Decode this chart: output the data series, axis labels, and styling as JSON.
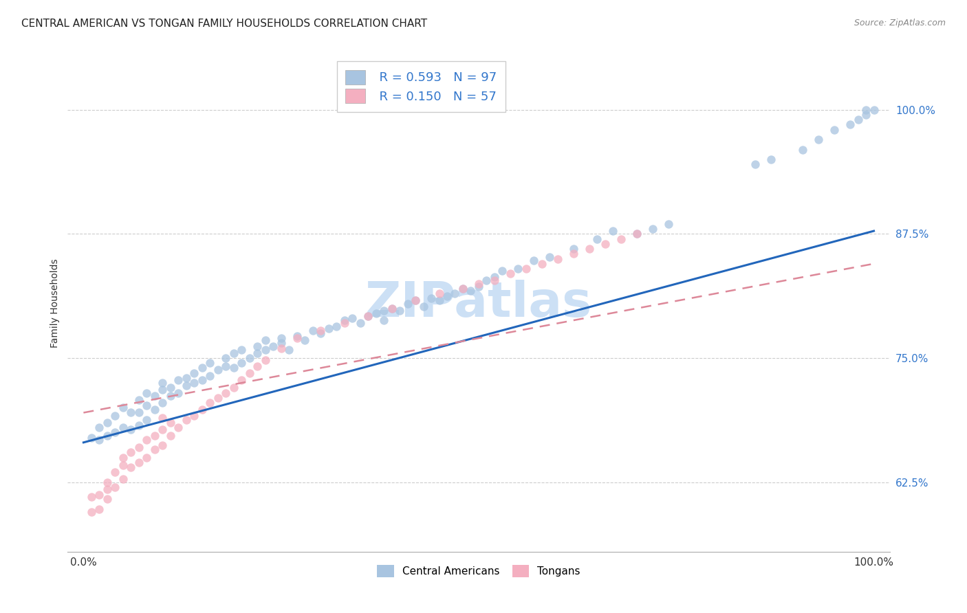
{
  "title": "CENTRAL AMERICAN VS TONGAN FAMILY HOUSEHOLDS CORRELATION CHART",
  "source": "Source: ZipAtlas.com",
  "ylabel": "Family Households",
  "xlim": [
    -0.02,
    1.02
  ],
  "ylim": [
    0.555,
    1.055
  ],
  "ytick_vals": [
    0.625,
    0.75,
    0.875,
    1.0
  ],
  "ytick_labels": [
    "62.5%",
    "75.0%",
    "87.5%",
    "100.0%"
  ],
  "xtick_vals": [
    0.0,
    0.25,
    0.5,
    0.75,
    1.0
  ],
  "xtick_labels": [
    "0.0%",
    "",
    "",
    "",
    "100.0%"
  ],
  "legend_r1": "R = 0.593",
  "legend_n1": "N = 97",
  "legend_r2": "R = 0.150",
  "legend_n2": "N = 57",
  "blue_scatter_color": "#a8c4e0",
  "pink_scatter_color": "#f4afc0",
  "blue_line_color": "#2266bb",
  "pink_line_color": "#dd8899",
  "tick_label_color": "#3377cc",
  "watermark_color": "#cce0f5",
  "blue_line_x": [
    0.0,
    1.0
  ],
  "blue_line_y": [
    0.665,
    0.878
  ],
  "pink_line_x": [
    0.0,
    1.0
  ],
  "pink_line_y": [
    0.695,
    0.845
  ],
  "blue_x": [
    0.01,
    0.02,
    0.02,
    0.03,
    0.03,
    0.04,
    0.04,
    0.05,
    0.05,
    0.06,
    0.06,
    0.07,
    0.07,
    0.07,
    0.08,
    0.08,
    0.08,
    0.09,
    0.09,
    0.1,
    0.1,
    0.1,
    0.11,
    0.11,
    0.12,
    0.12,
    0.13,
    0.13,
    0.14,
    0.14,
    0.15,
    0.15,
    0.16,
    0.16,
    0.17,
    0.18,
    0.18,
    0.19,
    0.19,
    0.2,
    0.2,
    0.21,
    0.22,
    0.22,
    0.23,
    0.23,
    0.24,
    0.25,
    0.25,
    0.26,
    0.27,
    0.28,
    0.29,
    0.3,
    0.31,
    0.32,
    0.33,
    0.34,
    0.35,
    0.36,
    0.37,
    0.38,
    0.38,
    0.39,
    0.4,
    0.41,
    0.42,
    0.43,
    0.44,
    0.45,
    0.46,
    0.47,
    0.48,
    0.49,
    0.5,
    0.51,
    0.52,
    0.53,
    0.55,
    0.57,
    0.59,
    0.62,
    0.65,
    0.67,
    0.7,
    0.72,
    0.74,
    0.85,
    0.87,
    0.91,
    0.93,
    0.95,
    0.97,
    0.98,
    0.99,
    0.99,
    1.0
  ],
  "blue_y": [
    0.67,
    0.668,
    0.68,
    0.672,
    0.685,
    0.675,
    0.692,
    0.68,
    0.7,
    0.678,
    0.695,
    0.682,
    0.695,
    0.708,
    0.688,
    0.702,
    0.715,
    0.698,
    0.712,
    0.705,
    0.718,
    0.725,
    0.712,
    0.72,
    0.715,
    0.728,
    0.722,
    0.73,
    0.725,
    0.735,
    0.728,
    0.74,
    0.732,
    0.745,
    0.738,
    0.742,
    0.75,
    0.74,
    0.755,
    0.745,
    0.758,
    0.75,
    0.755,
    0.762,
    0.758,
    0.768,
    0.762,
    0.765,
    0.77,
    0.758,
    0.772,
    0.768,
    0.778,
    0.775,
    0.78,
    0.782,
    0.788,
    0.79,
    0.785,
    0.792,
    0.795,
    0.798,
    0.788,
    0.8,
    0.798,
    0.805,
    0.808,
    0.802,
    0.81,
    0.808,
    0.812,
    0.815,
    0.82,
    0.818,
    0.822,
    0.828,
    0.832,
    0.838,
    0.84,
    0.848,
    0.852,
    0.86,
    0.87,
    0.878,
    0.875,
    0.88,
    0.885,
    0.945,
    0.95,
    0.96,
    0.97,
    0.98,
    0.985,
    0.99,
    0.995,
    1.0,
    1.0
  ],
  "pink_x": [
    0.01,
    0.01,
    0.02,
    0.02,
    0.03,
    0.03,
    0.03,
    0.04,
    0.04,
    0.05,
    0.05,
    0.05,
    0.06,
    0.06,
    0.07,
    0.07,
    0.08,
    0.08,
    0.09,
    0.09,
    0.1,
    0.1,
    0.1,
    0.11,
    0.11,
    0.12,
    0.13,
    0.14,
    0.15,
    0.16,
    0.17,
    0.18,
    0.19,
    0.2,
    0.21,
    0.22,
    0.23,
    0.25,
    0.27,
    0.3,
    0.33,
    0.36,
    0.39,
    0.42,
    0.45,
    0.48,
    0.5,
    0.52,
    0.54,
    0.56,
    0.58,
    0.6,
    0.62,
    0.64,
    0.66,
    0.68,
    0.7
  ],
  "pink_y": [
    0.595,
    0.61,
    0.598,
    0.612,
    0.608,
    0.618,
    0.625,
    0.62,
    0.635,
    0.628,
    0.642,
    0.65,
    0.64,
    0.655,
    0.645,
    0.66,
    0.65,
    0.668,
    0.658,
    0.672,
    0.662,
    0.678,
    0.69,
    0.672,
    0.685,
    0.68,
    0.688,
    0.692,
    0.698,
    0.705,
    0.71,
    0.715,
    0.72,
    0.728,
    0.735,
    0.742,
    0.748,
    0.76,
    0.77,
    0.778,
    0.785,
    0.792,
    0.8,
    0.808,
    0.815,
    0.82,
    0.825,
    0.828,
    0.835,
    0.84,
    0.845,
    0.85,
    0.855,
    0.86,
    0.865,
    0.87,
    0.875
  ]
}
